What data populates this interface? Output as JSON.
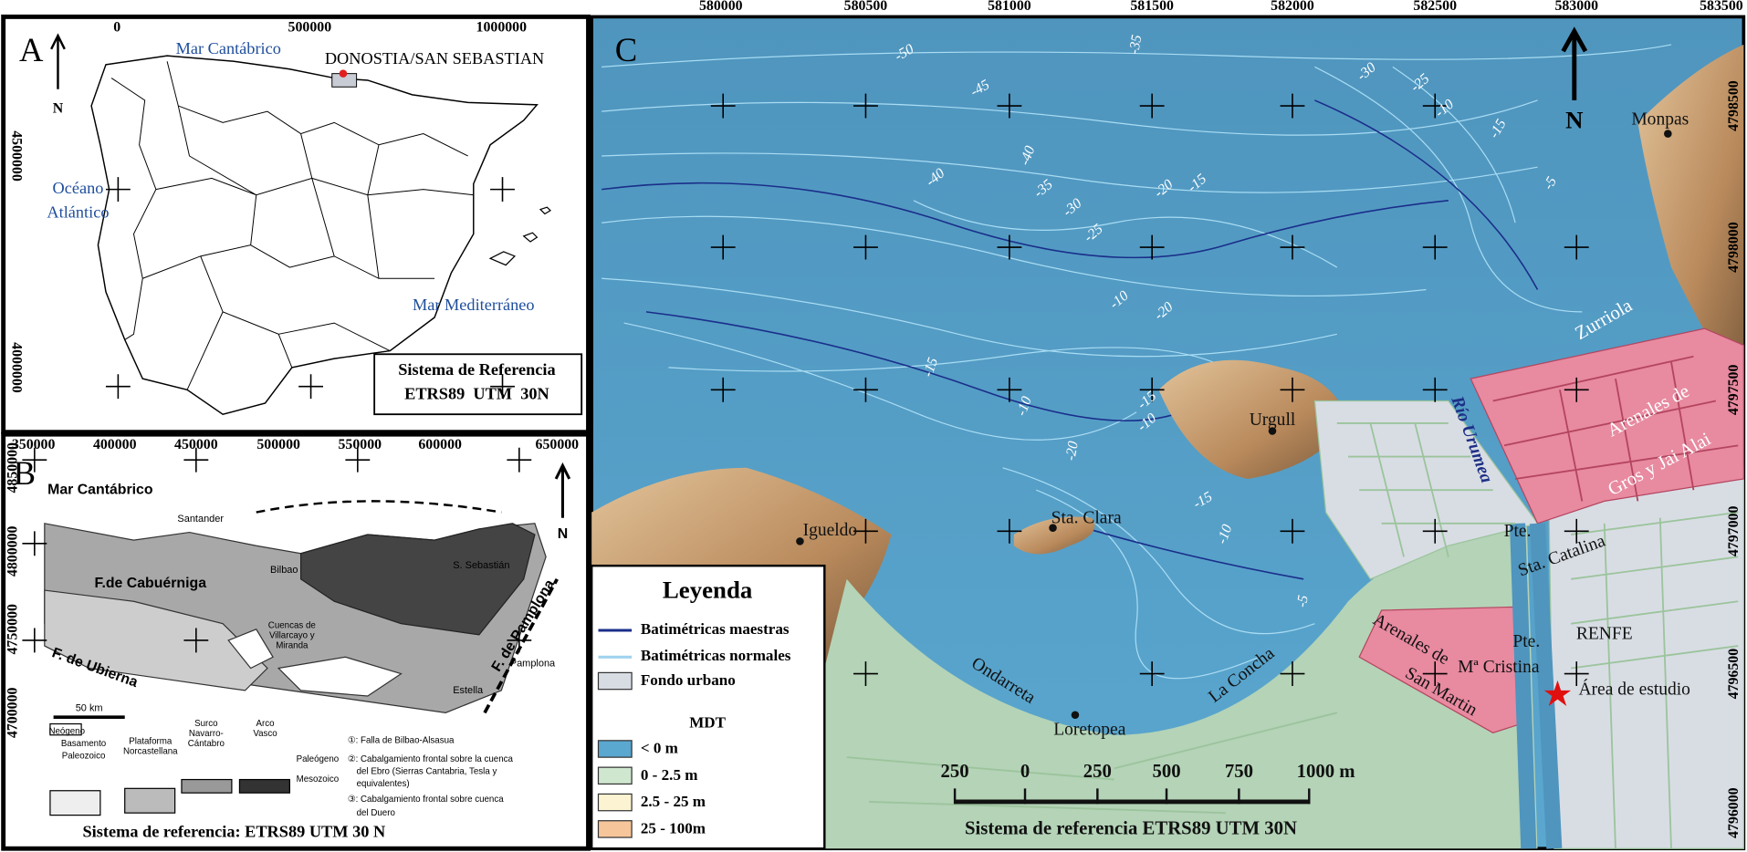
{
  "panel_a": {
    "label": "A",
    "north": "N",
    "x_ticks": [
      "0",
      "500000",
      "1000000"
    ],
    "y_ticks": [
      "4500000",
      "4000000"
    ],
    "places": [
      "Mar Cantábrico",
      "DONOSTIA/SAN SEBASTIAN",
      "Océano",
      "Atlántico",
      "Mar Mediterráneo"
    ],
    "reference": [
      "Sistema de Referencia",
      "ETRS89  UTM  30N"
    ]
  },
  "panel_b": {
    "label": "B",
    "north": "N",
    "x_ticks": [
      "350000",
      "400000",
      "450000",
      "500000",
      "550000",
      "600000",
      "650000"
    ],
    "y_ticks": [
      "4850000",
      "4800000",
      "4750000",
      "4700000"
    ],
    "places": [
      "Mar Cantábrico",
      "Santander",
      "Bilbao",
      "S. Sebastián",
      "F.de Cabuérniga",
      "Cuencas de",
      "Villarcayo y",
      "Miranda",
      "F. de Pamplona",
      "Pamplona",
      "Estella",
      "F. de Ubierna",
      "50 km"
    ],
    "legend": [
      "Neógeno",
      "Basamento",
      "Paleozoico",
      "Plataforma",
      "Norcastellana",
      "Surco",
      "Navarro-",
      "Cántabro",
      "Arco",
      "Vasco",
      "Paleógeno",
      "Mesozoico"
    ],
    "notes": [
      "①: Falla de Bilbao-Alsasua",
      "②: Cabalgamiento frontal sobre la cuenca",
      "del Ebro (Sierras Cantabria, Tesla y",
      "equivalentes)",
      "③: Cabalgamiento frontal sobre cuenca",
      "del Duero"
    ],
    "reference": "Sistema de referencia: ETRS89 UTM 30 N"
  },
  "panel_c": {
    "label": "C",
    "north": "N",
    "x_ticks": [
      "580000",
      "580500",
      "581000",
      "581500",
      "582000",
      "582500",
      "583000",
      "583500"
    ],
    "y_ticks": [
      "4798500",
      "4798000",
      "4797500",
      "4797000",
      "4796500",
      "4796000"
    ],
    "places": [
      "Monpas",
      "Zurriola",
      "Urgull",
      "Río Urumea",
      "Arenales de",
      "Gros y Jai Alai",
      "Igueldo",
      "Sta. Clara",
      "Pte.",
      "Sta. Catalina",
      "Ondarreta",
      "La Concha",
      "Loretopea",
      "Arenales de",
      "Mª Cristina",
      "San Martin",
      "Pte.",
      "RENFE",
      "Área de estudio"
    ],
    "contours": [
      "-50",
      "-45",
      "-40",
      "-35",
      "-30",
      "-25",
      "-40",
      "-35",
      "-30",
      "-25",
      "-20",
      "-15",
      "-10",
      "-20",
      "-15",
      "-10",
      "-5",
      "-15",
      "-10",
      "-20",
      "-15",
      "-10",
      "-15",
      "-10",
      "-5"
    ],
    "legend": {
      "title": "Leyenda",
      "items": [
        "Batimétricas maestras",
        "Batimétricas normales",
        "Fondo urbano"
      ],
      "mdt_title": "MDT",
      "mdt_items": [
        "< 0 m",
        "0 - 2.5 m",
        "2.5 - 25 m",
        "25 - 100m"
      ]
    },
    "scale": [
      "250",
      "0",
      "250",
      "500",
      "750",
      "1000 m"
    ],
    "reference": "Sistema de referencia ETRS89 UTM 30N"
  }
}
